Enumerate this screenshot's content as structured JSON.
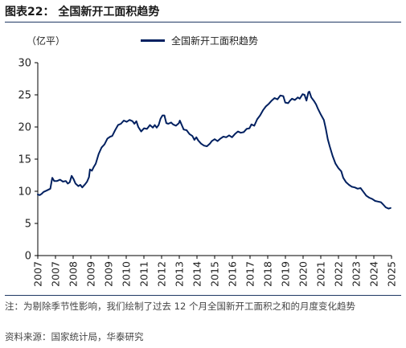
{
  "figure": {
    "title": "图表22：  全国新开工面积趋势",
    "unit_label": "（亿平）",
    "note": "注：为剔除季节性影响，我们绘制了过去 12 个月全国新开工面积之和的月度变化趋势",
    "source": "资料来源：国家统计局，华泰研究"
  },
  "colors": {
    "line": "#002060",
    "rule": "#1f3864",
    "text": "#222222"
  },
  "chart_data": {
    "type": "line",
    "title": "",
    "xlabel": "",
    "ylabel": "（亿平）",
    "ylim": [
      0,
      30
    ],
    "yticks": [
      0,
      5,
      10,
      15,
      20,
      25,
      30
    ],
    "xlim": [
      2007,
      2025.3
    ],
    "xticks": [
      "2007",
      "2007",
      "2008",
      "2009",
      "2009",
      "2010",
      "2011",
      "2012",
      "2013",
      "2014",
      "2015",
      "2016",
      "2017",
      "2018",
      "2019",
      "2020",
      "2021",
      "2022",
      "2023",
      "2024",
      "2025"
    ],
    "grid": false,
    "legend_position": "top",
    "series": [
      {
        "name": "全国新开工面积趋势",
        "points": [
          [
            2007.0,
            9.5
          ],
          [
            2007.1,
            9.4
          ],
          [
            2007.2,
            9.6
          ],
          [
            2007.3,
            9.9
          ],
          [
            2007.45,
            10.1
          ],
          [
            2007.65,
            10.4
          ],
          [
            2007.75,
            12.1
          ],
          [
            2007.85,
            11.6
          ],
          [
            2008.0,
            11.6
          ],
          [
            2008.15,
            11.8
          ],
          [
            2008.3,
            11.5
          ],
          [
            2008.45,
            11.6
          ],
          [
            2008.55,
            11.2
          ],
          [
            2008.65,
            11.4
          ],
          [
            2008.75,
            12.4
          ],
          [
            2008.85,
            11.9
          ],
          [
            2008.95,
            11.2
          ],
          [
            2009.1,
            10.8
          ],
          [
            2009.2,
            11.0
          ],
          [
            2009.3,
            10.6
          ],
          [
            2009.45,
            11.1
          ],
          [
            2009.55,
            11.5
          ],
          [
            2009.65,
            12.2
          ],
          [
            2009.7,
            13.4
          ],
          [
            2009.8,
            13.2
          ],
          [
            2009.9,
            13.8
          ],
          [
            2010.0,
            14.3
          ],
          [
            2010.15,
            15.8
          ],
          [
            2010.3,
            16.8
          ],
          [
            2010.45,
            17.3
          ],
          [
            2010.6,
            18.2
          ],
          [
            2010.75,
            18.5
          ],
          [
            2010.85,
            18.6
          ],
          [
            2011.0,
            19.5
          ],
          [
            2011.15,
            20.3
          ],
          [
            2011.3,
            20.5
          ],
          [
            2011.45,
            21.0
          ],
          [
            2011.6,
            20.8
          ],
          [
            2011.75,
            21.1
          ],
          [
            2011.9,
            20.9
          ],
          [
            2012.0,
            20.5
          ],
          [
            2012.1,
            20.9
          ],
          [
            2012.2,
            20.0
          ],
          [
            2012.35,
            19.3
          ],
          [
            2012.5,
            19.8
          ],
          [
            2012.65,
            19.7
          ],
          [
            2012.8,
            20.3
          ],
          [
            2012.95,
            19.9
          ],
          [
            2013.05,
            20.3
          ],
          [
            2013.15,
            19.9
          ],
          [
            2013.25,
            20.3
          ],
          [
            2013.35,
            21.3
          ],
          [
            2013.45,
            21.8
          ],
          [
            2013.55,
            21.8
          ],
          [
            2013.65,
            20.6
          ],
          [
            2013.75,
            20.5
          ],
          [
            2013.9,
            20.7
          ],
          [
            2014.0,
            20.4
          ],
          [
            2014.15,
            20.2
          ],
          [
            2014.3,
            20.6
          ],
          [
            2014.35,
            21.0
          ],
          [
            2014.45,
            20.3
          ],
          [
            2014.55,
            19.6
          ],
          [
            2014.7,
            19.5
          ],
          [
            2014.85,
            18.9
          ],
          [
            2015.0,
            18.6
          ],
          [
            2015.1,
            18.0
          ],
          [
            2015.2,
            18.4
          ],
          [
            2015.3,
            17.9
          ],
          [
            2015.45,
            17.4
          ],
          [
            2015.6,
            17.1
          ],
          [
            2015.75,
            17.0
          ],
          [
            2015.9,
            17.4
          ],
          [
            2016.0,
            17.8
          ],
          [
            2016.15,
            18.1
          ],
          [
            2016.3,
            17.8
          ],
          [
            2016.45,
            18.2
          ],
          [
            2016.6,
            18.5
          ],
          [
            2016.75,
            18.4
          ],
          [
            2016.9,
            18.7
          ],
          [
            2017.05,
            18.4
          ],
          [
            2017.2,
            18.9
          ],
          [
            2017.35,
            19.3
          ],
          [
            2017.5,
            19.1
          ],
          [
            2017.65,
            19.2
          ],
          [
            2017.8,
            19.7
          ],
          [
            2017.95,
            19.8
          ],
          [
            2018.05,
            20.4
          ],
          [
            2018.2,
            20.2
          ],
          [
            2018.35,
            21.2
          ],
          [
            2018.5,
            21.8
          ],
          [
            2018.65,
            22.6
          ],
          [
            2018.8,
            23.2
          ],
          [
            2018.95,
            23.6
          ],
          [
            2019.1,
            24.1
          ],
          [
            2019.25,
            24.5
          ],
          [
            2019.4,
            24.3
          ],
          [
            2019.55,
            24.9
          ],
          [
            2019.7,
            24.8
          ],
          [
            2019.8,
            23.8
          ],
          [
            2019.95,
            23.7
          ],
          [
            2020.05,
            24.1
          ],
          [
            2020.15,
            24.4
          ],
          [
            2020.3,
            24.2
          ],
          [
            2020.45,
            24.6
          ],
          [
            2020.55,
            24.4
          ],
          [
            2020.7,
            25.1
          ],
          [
            2020.8,
            25.0
          ],
          [
            2020.9,
            24.1
          ],
          [
            2021.0,
            25.4
          ],
          [
            2021.05,
            25.5
          ],
          [
            2021.15,
            24.6
          ],
          [
            2021.3,
            24.0
          ],
          [
            2021.4,
            23.5
          ],
          [
            2021.5,
            22.8
          ],
          [
            2021.65,
            21.9
          ],
          [
            2021.8,
            21.1
          ],
          [
            2021.9,
            19.7
          ],
          [
            2022.0,
            18.1
          ],
          [
            2022.1,
            17.0
          ],
          [
            2022.25,
            15.5
          ],
          [
            2022.4,
            14.3
          ],
          [
            2022.55,
            13.6
          ],
          [
            2022.7,
            13.1
          ],
          [
            2022.8,
            12.1
          ],
          [
            2022.95,
            11.4
          ],
          [
            2023.1,
            11.0
          ],
          [
            2023.25,
            10.7
          ],
          [
            2023.4,
            10.6
          ],
          [
            2023.55,
            10.4
          ],
          [
            2023.7,
            10.5
          ],
          [
            2023.85,
            9.9
          ],
          [
            2024.0,
            9.3
          ],
          [
            2024.15,
            9.0
          ],
          [
            2024.3,
            8.8
          ],
          [
            2024.45,
            8.5
          ],
          [
            2024.6,
            8.4
          ],
          [
            2024.75,
            8.3
          ],
          [
            2024.85,
            8.0
          ],
          [
            2025.0,
            7.5
          ],
          [
            2025.15,
            7.3
          ],
          [
            2025.25,
            7.4
          ]
        ]
      }
    ]
  }
}
